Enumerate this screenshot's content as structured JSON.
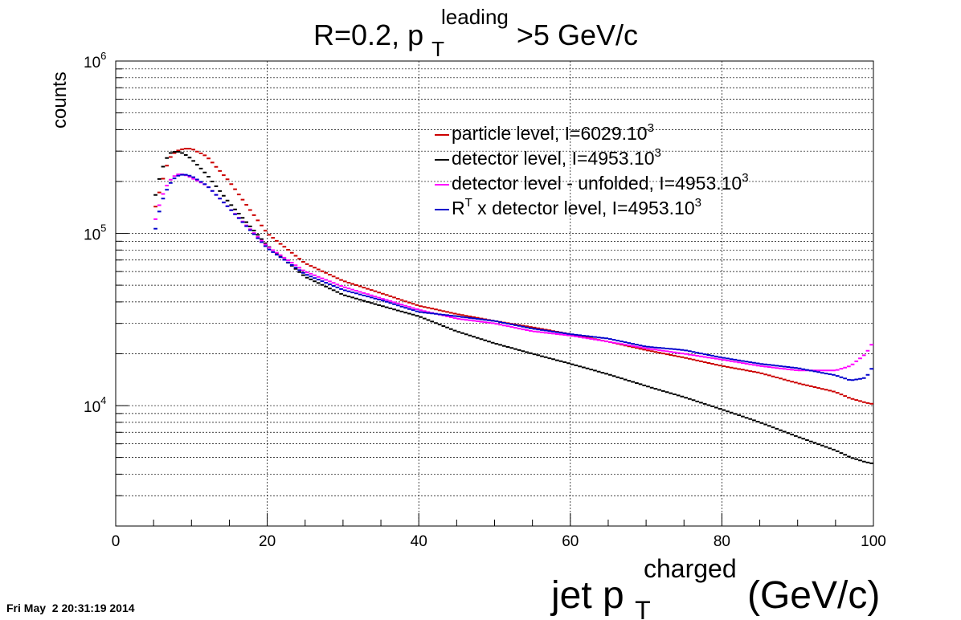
{
  "chart_data": {
    "type": "line",
    "title": {
      "main": "R=0.2, p",
      "sup": "leading",
      "sub": "T",
      "after": ">5 GeV/c"
    },
    "xlabel": {
      "main": "jet p",
      "sup": "charged",
      "sub": "T",
      "after": " (GeV/c)"
    },
    "ylabel": "counts",
    "xlim": [
      0,
      100
    ],
    "ylim": [
      2000,
      1000000
    ],
    "yscale": "log",
    "grid": true,
    "legend_position": "top-right",
    "x_ticks": [
      "0",
      "20",
      "40",
      "60",
      "80",
      "100"
    ],
    "y_ticks": [
      {
        "base": "10",
        "exp": "4",
        "value": 10000
      },
      {
        "base": "10",
        "exp": "5",
        "value": 100000
      },
      {
        "base": "10",
        "exp": "6",
        "value": 1000000
      }
    ],
    "x": [
      5,
      6,
      7,
      8,
      9,
      10,
      12,
      15,
      20,
      25,
      30,
      35,
      40,
      45,
      50,
      55,
      60,
      65,
      70,
      75,
      80,
      85,
      90,
      95,
      97,
      99,
      100
    ],
    "series": [
      {
        "name": "particle level, I=6029.10",
        "sup": "3",
        "color": "#cc0000",
        "values": [
          130000,
          190000,
          270000,
          300000,
          310000,
          310000,
          280000,
          200000,
          100000,
          67000,
          53000,
          45000,
          38000,
          34000,
          31000,
          28500,
          26000,
          23500,
          21000,
          19000,
          17000,
          15500,
          13500,
          12000,
          11000,
          10400,
          10200
        ]
      },
      {
        "name": "detector level, I=4953.10",
        "sup": "3",
        "color": "#000000",
        "values": [
          150000,
          230000,
          290000,
          300000,
          290000,
          270000,
          220000,
          150000,
          85000,
          56000,
          44000,
          38000,
          33000,
          27000,
          23000,
          20000,
          17500,
          15200,
          13000,
          11200,
          9500,
          8000,
          6600,
          5500,
          5000,
          4700,
          4600
        ]
      },
      {
        "name": "detector level - unfolded, I=4953.10",
        "sup": "3",
        "color": "#ff00ff",
        "values": [
          110000,
          160000,
          200000,
          220000,
          220000,
          210000,
          190000,
          140000,
          84000,
          60000,
          49000,
          42000,
          36000,
          32000,
          30000,
          27000,
          25500,
          23500,
          21500,
          20000,
          18500,
          17000,
          16000,
          16000,
          17000,
          20000,
          23500
        ]
      },
      {
        "name": "R",
        "name_sup": "T",
        "name_after": " x detector level, I=4953.10",
        "sup": "3",
        "color": "#0000cc",
        "values": [
          95000,
          150000,
          190000,
          215000,
          220000,
          215000,
          190000,
          140000,
          82000,
          58000,
          47000,
          41000,
          35000,
          33000,
          31000,
          28000,
          26000,
          24500,
          22000,
          21000,
          19000,
          17500,
          16500,
          15000,
          14000,
          14500,
          17000
        ]
      }
    ]
  },
  "footer": {
    "timestamp": "Fri May  2 20:31:19 2014"
  }
}
